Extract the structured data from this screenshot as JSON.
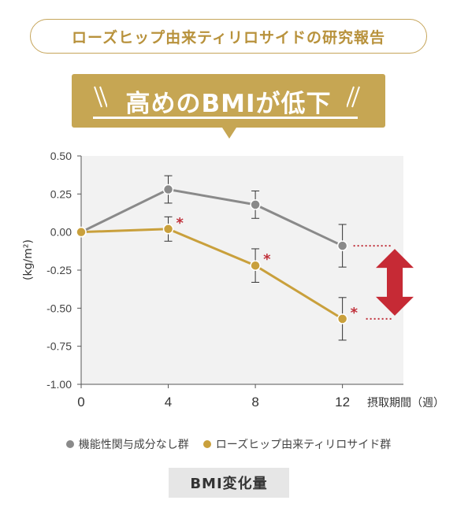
{
  "header": {
    "pill_text": "ローズヒップ由来ティリロサイドの研究報告"
  },
  "banner": {
    "headline": "高めのBMIが低下",
    "color": "#c6a653"
  },
  "chart_data": {
    "type": "line",
    "xlabel": "摂取期間（週）",
    "ylabel": "(kg/m²)",
    "x": [
      0,
      4,
      8,
      12
    ],
    "ylim": [
      -1.0,
      0.5
    ],
    "yticks": [
      "0.50",
      "0.25",
      "0.00",
      "-0.25",
      "-0.50",
      "-0.75",
      "-1.00"
    ],
    "xticks": [
      "0",
      "4",
      "8",
      "12"
    ],
    "grid": false,
    "legend_position": "bottom",
    "series": [
      {
        "name": "機能性関与成分なし群",
        "color": "#8a8a8a",
        "values": [
          0.0,
          0.28,
          0.18,
          -0.09
        ],
        "error": [
          0.0,
          0.09,
          0.09,
          0.14
        ],
        "significant": [
          false,
          false,
          false,
          false
        ]
      },
      {
        "name": "ローズヒップ由来ティリロサイド群",
        "color": "#c9a03c",
        "values": [
          0.0,
          0.02,
          -0.22,
          -0.57
        ],
        "error": [
          0.0,
          0.08,
          0.11,
          0.14
        ],
        "significant": [
          false,
          true,
          true,
          true
        ]
      }
    ],
    "significance_mark": "*"
  },
  "caption": "BMI変化量"
}
